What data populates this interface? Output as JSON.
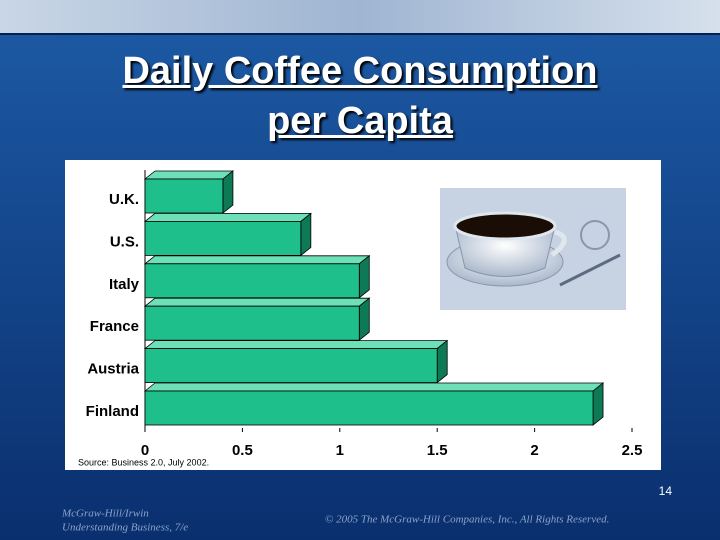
{
  "chart_data": {
    "type": "bar",
    "orientation": "horizontal",
    "title": "Daily Coffee Consumption per Capita",
    "categories": [
      "U.K.",
      "U.S.",
      "Italy",
      "France",
      "Austria",
      "Finland"
    ],
    "values": [
      0.4,
      0.8,
      1.1,
      1.1,
      1.5,
      2.3
    ],
    "color": "#1fbf8c",
    "xlim": [
      0,
      2.5
    ],
    "xticks": [
      0,
      0.5,
      1,
      1.5,
      2,
      2.5
    ],
    "grid": false,
    "source": "Source: Business 2.0, July 2002."
  },
  "slide": {
    "page_number": "14",
    "publisher": "McGraw-Hill/Irwin",
    "book": "Understanding Business, 7/e",
    "copyright": "© 2005 The McGraw-Hill Companies, Inc., All Rights Reserved."
  }
}
